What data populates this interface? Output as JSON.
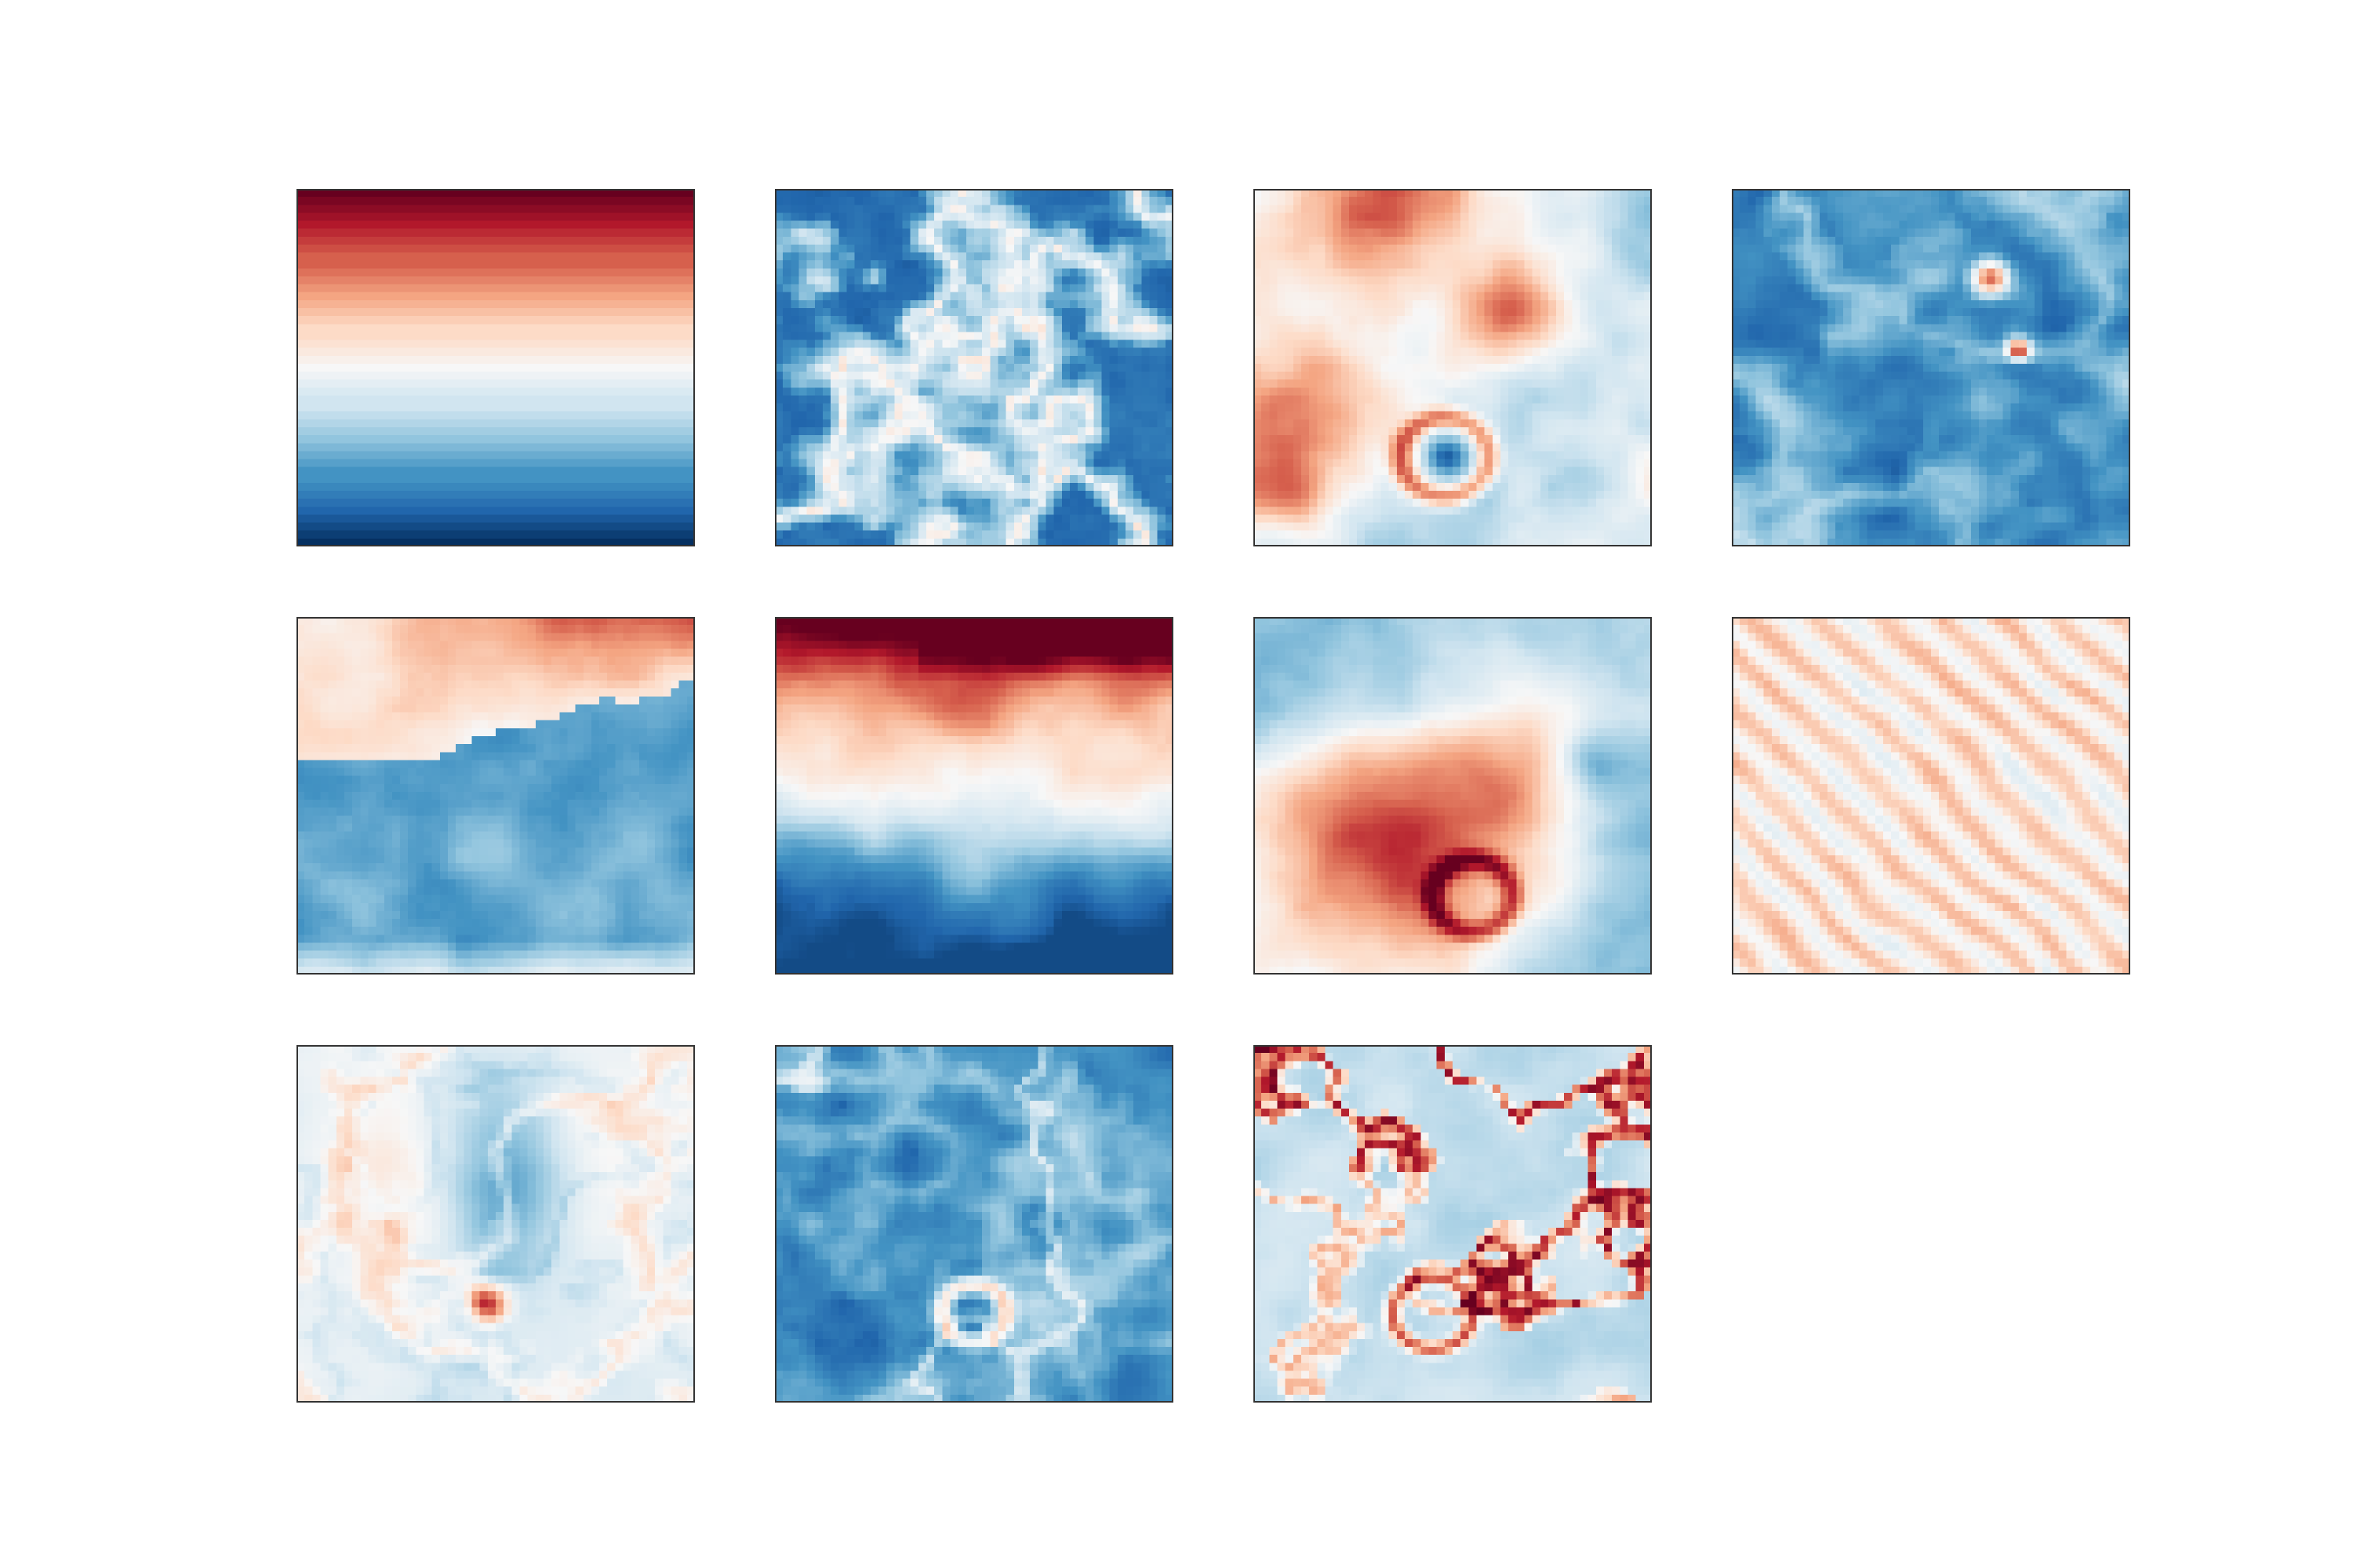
{
  "figure": {
    "title": "",
    "colormap": "RdBu_r",
    "colormap_stops": [
      "#053061",
      "#2166ac",
      "#4393c3",
      "#92c5de",
      "#d1e5f0",
      "#f7f7f7",
      "#fddbc7",
      "#f4a582",
      "#d6604d",
      "#b2182b",
      "#67001f"
    ]
  },
  "chart_data": [
    {
      "type": "heatmap",
      "field": "vertical-gradient",
      "title": "",
      "grid": false,
      "clim": [
        -1,
        1
      ]
    },
    {
      "type": "heatmap",
      "field": "filament-network-blue",
      "title": "",
      "grid": false,
      "clim": [
        -1,
        1
      ]
    },
    {
      "type": "heatmap",
      "field": "mixed-red-blue-with-ring",
      "title": "",
      "grid": false,
      "clim": [
        -1,
        1
      ]
    },
    {
      "type": "heatmap",
      "field": "dark-blue-with-few-red-cells",
      "title": "",
      "grid": false,
      "clim": [
        -1,
        1
      ]
    },
    {
      "type": "heatmap",
      "field": "red-top-right-blue-bottom",
      "title": "",
      "grid": false,
      "clim": [
        -1,
        1
      ]
    },
    {
      "type": "heatmap",
      "field": "red-top-band-blue-bottom",
      "title": "",
      "grid": false,
      "clim": [
        -1,
        1
      ]
    },
    {
      "type": "heatmap",
      "field": "red-center-left-blue-edges",
      "title": "",
      "grid": false,
      "clim": [
        -1,
        1
      ]
    },
    {
      "type": "heatmap",
      "field": "diagonal-streaks-light",
      "title": "",
      "grid": false,
      "clim": [
        -1,
        1
      ]
    },
    {
      "type": "heatmap",
      "field": "light-with-red-eddies",
      "title": "",
      "grid": false,
      "clim": [
        -1,
        1
      ]
    },
    {
      "type": "heatmap",
      "field": "blue-with-white-ring",
      "title": "",
      "grid": false,
      "clim": [
        -1,
        1
      ]
    },
    {
      "type": "heatmap",
      "field": "light-blue-with-dark-red-filaments",
      "title": "",
      "grid": false,
      "clim": [
        -1,
        1
      ]
    }
  ]
}
